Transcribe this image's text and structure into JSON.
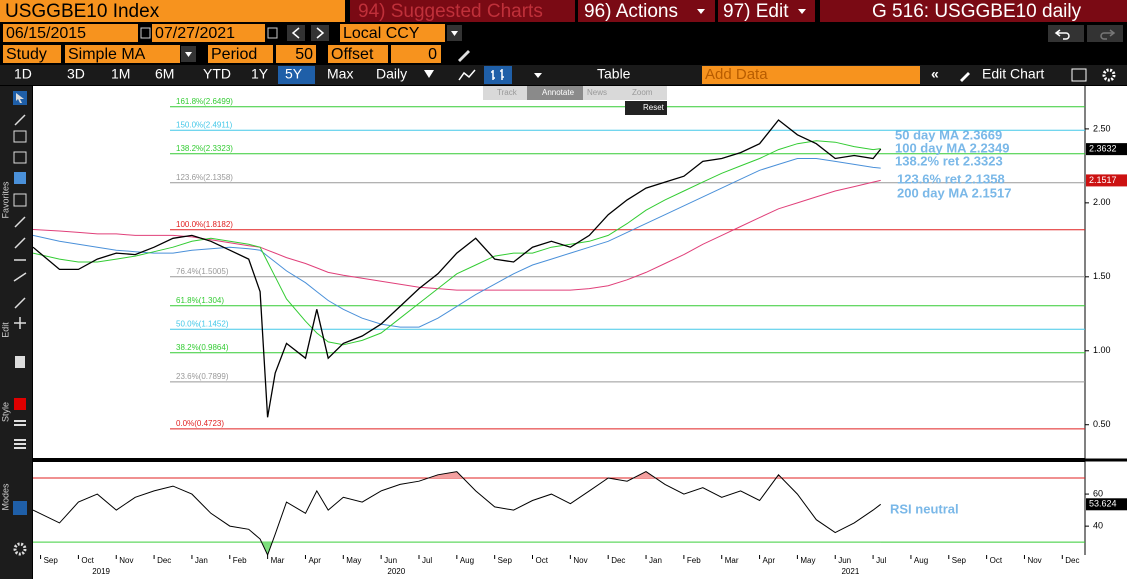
{
  "header": {
    "security": "USGGBE10 Index",
    "suggested": "94) Suggested Charts",
    "actions": "96) Actions",
    "edit": "97) Edit",
    "page": "G 516: USGGBE10 daily"
  },
  "range": {
    "start": "06/15/2015",
    "end": "07/27/2021",
    "currency": "Local CCY"
  },
  "study": {
    "label": "Study",
    "value": "Simple MA",
    "period_label": "Period",
    "period": "50",
    "offset_label": "Offset",
    "offset": "0"
  },
  "toolbar": {
    "periods": [
      "1D",
      "3D",
      "1M",
      "6M",
      "YTD",
      "1Y",
      "5Y",
      "Max"
    ],
    "frequency": "Daily",
    "table": "Table",
    "add_data": "Add Data",
    "edit_chart": "Edit Chart"
  },
  "sidebar": [
    "Favorites",
    "Edit",
    "Style",
    "Modes"
  ],
  "tools": [
    "Track",
    "Annotate",
    "News",
    "Zoom"
  ],
  "reset": "Reset",
  "chart_data": {
    "type": "line",
    "x": [
      -0.2,
      0.5,
      1,
      1.5,
      2,
      2.5,
      3,
      3.5,
      4,
      4.5,
      5,
      5.5,
      5.8,
      6,
      6.2,
      6.5,
      7,
      7.3,
      7.6,
      8,
      8.5,
      9,
      9.5,
      10,
      10.5,
      11,
      11.5,
      12,
      12.5,
      13,
      13.5,
      14,
      14.5,
      15,
      15.5,
      16,
      16.5,
      17,
      17.5,
      18,
      18.5,
      19,
      19.5,
      20,
      20.5,
      21,
      21.5,
      22,
      22.2
    ],
    "xlim": [
      -0.2,
      27.6
    ],
    "xticks": [
      {
        "value": 0,
        "label": "Sep"
      },
      {
        "value": 1,
        "label": "Oct"
      },
      {
        "value": 2,
        "label": "Nov"
      },
      {
        "value": 3,
        "label": "Dec"
      },
      {
        "value": 4,
        "label": "Jan"
      },
      {
        "value": 5,
        "label": "Feb"
      },
      {
        "value": 6,
        "label": "Mar"
      },
      {
        "value": 7,
        "label": "Apr"
      },
      {
        "value": 8,
        "label": "May"
      },
      {
        "value": 9,
        "label": "Jun"
      },
      {
        "value": 10,
        "label": "Jul"
      },
      {
        "value": 11,
        "label": "Aug"
      },
      {
        "value": 12,
        "label": "Sep"
      },
      {
        "value": 13,
        "label": "Oct"
      },
      {
        "value": 14,
        "label": "Nov"
      },
      {
        "value": 15,
        "label": "Dec"
      },
      {
        "value": 16,
        "label": "Jan"
      },
      {
        "value": 17,
        "label": "Feb"
      },
      {
        "value": 18,
        "label": "Mar"
      },
      {
        "value": 19,
        "label": "Apr"
      },
      {
        "value": 20,
        "label": "May"
      },
      {
        "value": 21,
        "label": "Jun"
      },
      {
        "value": 22,
        "label": "Jul"
      },
      {
        "value": 23,
        "label": "Aug"
      },
      {
        "value": 24,
        "label": "Sep"
      },
      {
        "value": 25,
        "label": "Oct"
      },
      {
        "value": 26,
        "label": "Nov"
      },
      {
        "value": 27,
        "label": "Dec"
      }
    ],
    "year_ticks": [
      {
        "value": 1.6,
        "label": "2019"
      },
      {
        "value": 9.4,
        "label": "2020"
      },
      {
        "value": 21.4,
        "label": "2021"
      }
    ],
    "ylim": [
      0.275,
      2.79
    ],
    "yticks": [
      {
        "value": 0.5,
        "label": "0.50"
      },
      {
        "value": 1,
        "label": "1.00"
      },
      {
        "value": 1.5,
        "label": "1.50"
      },
      {
        "value": 2,
        "label": "2.00"
      },
      {
        "value": 2.5,
        "label": "2.50"
      }
    ],
    "series": [
      {
        "color": "#000000",
        "values": [
          1.7,
          1.55,
          1.55,
          1.62,
          1.66,
          1.65,
          1.7,
          1.76,
          1.78,
          1.74,
          1.68,
          1.62,
          1.4,
          0.55,
          0.85,
          1.05,
          0.95,
          1.28,
          0.95,
          1.05,
          1.1,
          1.18,
          1.3,
          1.42,
          1.52,
          1.66,
          1.76,
          1.62,
          1.6,
          1.7,
          1.74,
          1.7,
          1.78,
          1.92,
          2.02,
          2.1,
          2.14,
          2.18,
          2.28,
          2.3,
          2.34,
          2.4,
          2.56,
          2.46,
          2.4,
          2.3,
          2.32,
          2.3,
          2.3632
        ]
      },
      {
        "name": "50 day MA 2.3669",
        "color": "#33cc33",
        "values": [
          1.66,
          1.62,
          1.6,
          1.6,
          1.62,
          1.64,
          1.67,
          1.7,
          1.74,
          1.76,
          1.74,
          1.72,
          1.7,
          1.6,
          1.5,
          1.35,
          1.2,
          1.12,
          1.06,
          1.04,
          1.07,
          1.12,
          1.22,
          1.32,
          1.42,
          1.52,
          1.58,
          1.64,
          1.66,
          1.66,
          1.7,
          1.72,
          1.74,
          1.78,
          1.86,
          1.95,
          2.02,
          2.08,
          2.14,
          2.2,
          2.25,
          2.3,
          2.36,
          2.4,
          2.42,
          2.41,
          2.38,
          2.36,
          2.3669
        ]
      },
      {
        "name": "100 day MA 2.2349",
        "color": "#4a90d9",
        "values": [
          1.78,
          1.74,
          1.72,
          1.7,
          1.68,
          1.67,
          1.66,
          1.66,
          1.68,
          1.69,
          1.7,
          1.69,
          1.68,
          1.64,
          1.6,
          1.54,
          1.46,
          1.4,
          1.34,
          1.28,
          1.22,
          1.18,
          1.16,
          1.16,
          1.22,
          1.3,
          1.38,
          1.45,
          1.52,
          1.58,
          1.62,
          1.66,
          1.7,
          1.74,
          1.8,
          1.86,
          1.92,
          1.98,
          2.04,
          2.1,
          2.16,
          2.22,
          2.26,
          2.3,
          2.3,
          2.28,
          2.26,
          2.24,
          2.2349
        ]
      },
      {
        "name": "200 day MA 2.1517",
        "color": "#e0407a",
        "values": [
          1.82,
          1.81,
          1.8,
          1.79,
          1.79,
          1.78,
          1.78,
          1.78,
          1.77,
          1.75,
          1.73,
          1.71,
          1.7,
          1.68,
          1.66,
          1.63,
          1.59,
          1.56,
          1.53,
          1.51,
          1.49,
          1.47,
          1.45,
          1.43,
          1.42,
          1.41,
          1.41,
          1.41,
          1.41,
          1.41,
          1.41,
          1.41,
          1.42,
          1.44,
          1.48,
          1.53,
          1.59,
          1.65,
          1.72,
          1.78,
          1.84,
          1.9,
          1.96,
          2.0,
          2.04,
          2.08,
          2.11,
          2.14,
          2.1517
        ]
      }
    ],
    "levels": [
      {
        "value": 2.6499,
        "label": "161.8%(2.6499)",
        "color": "#33cc33"
      },
      {
        "value": 2.4911,
        "label": "150.0%(2.4911)",
        "color": "#44c8e8"
      },
      {
        "value": 2.3323,
        "label": "138.2%(2.3323)",
        "color": "#33cc33",
        "legend": "138.2% ret 2.3323"
      },
      {
        "value": 2.1358,
        "label": "123.6%(2.1358)",
        "color": "#999999",
        "legend": "123.6% ret 2.1358"
      },
      {
        "value": 1.8182,
        "label": "100.0%(1.8182)",
        "color": "#e02020"
      },
      {
        "value": 1.5005,
        "label": "76.4%(1.5005)",
        "color": "#999999"
      },
      {
        "value": 1.304,
        "label": "61.8%(1.304)",
        "color": "#33cc33"
      },
      {
        "value": 1.1452,
        "label": "50.0%(1.1452)",
        "color": "#44c8e8"
      },
      {
        "value": 0.9864,
        "label": "38.2%(0.9864)",
        "color": "#33cc33"
      },
      {
        "value": 0.7899,
        "label": "23.6%(0.7899)",
        "color": "#999999"
      },
      {
        "value": 0.4723,
        "label": "0.0%(0.4723)",
        "color": "#e02020"
      }
    ],
    "price_tags": [
      {
        "value": 2.3632,
        "color": "#000000"
      },
      {
        "value": 2.1517,
        "color": "#cc1111"
      }
    ],
    "rsi": {
      "ylim": [
        22,
        80
      ],
      "yticks": [
        40,
        60
      ],
      "levels": [
        70,
        30
      ],
      "color": "#000000",
      "values": [
        50,
        42,
        55,
        60,
        50,
        58,
        62,
        65,
        60,
        48,
        40,
        38,
        32,
        22,
        35,
        55,
        48,
        62,
        50,
        58,
        55,
        62,
        66,
        68,
        72,
        74,
        62,
        52,
        50,
        56,
        60,
        54,
        62,
        70,
        68,
        74,
        66,
        60,
        64,
        58,
        62,
        56,
        72,
        60,
        44,
        36,
        42,
        50,
        53.624
      ],
      "label": "RSI neutral",
      "tag": 53.624
    }
  }
}
